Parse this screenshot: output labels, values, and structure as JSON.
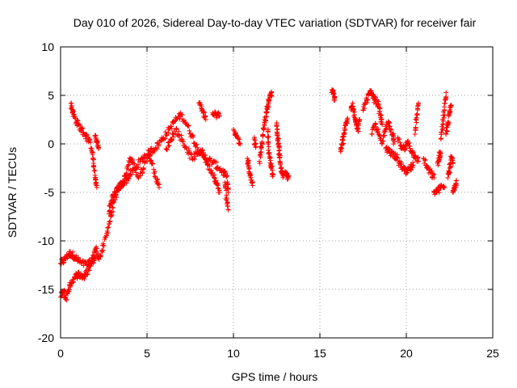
{
  "chart_data": {
    "type": "scatter",
    "title": "Day 010 of 2026, Sidereal Day-to-day VTEC variation (SDTVAR) for receiver fair",
    "xlabel": "GPS time / hours",
    "ylabel": "SDTVAR / TECUs",
    "xlim": [
      0,
      25
    ],
    "ylim": [
      -20,
      10
    ],
    "xticks": [
      "0",
      "5",
      "10",
      "15",
      "20",
      "25"
    ],
    "yticks": [
      "-20",
      "-15",
      "-10",
      "-5",
      "0",
      "5",
      "10"
    ],
    "grid": true,
    "marker": "+",
    "marker_color": "#ff0000",
    "series": [
      {
        "name": "SDTVAR",
        "segments": [
          [
            [
              0.0,
              -12.3
            ],
            [
              0.2,
              -12.0
            ],
            [
              0.4,
              -11.5
            ],
            [
              0.6,
              -11.3
            ],
            [
              0.8,
              -11.6
            ],
            [
              1.0,
              -12.0
            ],
            [
              1.2,
              -12.3
            ],
            [
              1.5,
              -12.4
            ],
            [
              1.8,
              -12.2
            ],
            [
              2.0,
              -11.8
            ],
            [
              2.3,
              -11.5
            ],
            [
              2.5,
              -10.5
            ],
            [
              2.7,
              -9.0
            ],
            [
              2.9,
              -7.5
            ],
            [
              3.1,
              -6.0
            ],
            [
              3.3,
              -4.8
            ],
            [
              3.5,
              -4.2
            ],
            [
              3.8,
              -3.8
            ],
            [
              4.0,
              -3.2
            ],
            [
              4.3,
              -2.6
            ],
            [
              4.6,
              -1.8
            ],
            [
              4.9,
              -1.2
            ],
            [
              5.2,
              -0.8
            ],
            [
              5.5,
              -0.4
            ],
            [
              5.8,
              0.3
            ],
            [
              6.1,
              1.0
            ],
            [
              6.4,
              1.8
            ],
            [
              6.7,
              2.6
            ],
            [
              7.0,
              3.0
            ],
            [
              7.3,
              2.0
            ],
            [
              7.6,
              0.8
            ],
            [
              7.9,
              -0.4
            ],
            [
              8.2,
              -1.2
            ],
            [
              8.5,
              -1.6
            ],
            [
              8.8,
              -1.9
            ],
            [
              9.1,
              -2.4
            ],
            [
              9.4,
              -2.9
            ],
            [
              9.6,
              -3.4
            ],
            [
              9.7,
              -5.0
            ]
          ],
          [
            [
              0.0,
              -15.8
            ],
            [
              0.15,
              -15.2
            ],
            [
              0.3,
              -16.0
            ],
            [
              0.45,
              -15.0
            ],
            [
              0.6,
              -14.3
            ],
            [
              0.8,
              -13.8
            ],
            [
              1.0,
              -13.4
            ],
            [
              1.2,
              -13.6
            ],
            [
              1.4,
              -13.7
            ],
            [
              1.6,
              -13.0
            ],
            [
              1.8,
              -12.0
            ],
            [
              1.95,
              -11.2
            ],
            [
              2.1,
              -10.8
            ]
          ],
          [
            [
              0.6,
              4.2
            ],
            [
              0.7,
              3.3
            ],
            [
              0.85,
              2.6
            ],
            [
              1.0,
              2.0
            ],
            [
              1.2,
              1.5
            ],
            [
              1.4,
              1.0
            ],
            [
              1.6,
              0.5
            ],
            [
              1.8,
              -0.5
            ],
            [
              1.9,
              -2.0
            ],
            [
              2.0,
              -3.5
            ],
            [
              2.1,
              -4.5
            ]
          ],
          [
            [
              2.0,
              0.8
            ],
            [
              2.1,
              0.2
            ],
            [
              2.2,
              -0.5
            ]
          ],
          [
            [
              2.8,
              -7.0
            ],
            [
              2.9,
              -6.2
            ],
            [
              3.0,
              -5.5
            ],
            [
              3.2,
              -5.0
            ],
            [
              3.4,
              -4.4
            ],
            [
              3.6,
              -4.0
            ],
            [
              3.8,
              -3.0
            ],
            [
              4.0,
              -1.5
            ],
            [
              4.2,
              -2.0
            ],
            [
              4.5,
              -3.5
            ],
            [
              4.8,
              -2.5
            ],
            [
              5.1,
              -1.0
            ],
            [
              5.3,
              -2.0
            ],
            [
              5.5,
              -3.5
            ],
            [
              5.7,
              -4.5
            ]
          ],
          [
            [
              6.1,
              -0.5
            ],
            [
              6.4,
              0.5
            ],
            [
              6.7,
              1.5
            ],
            [
              7.0,
              0.5
            ],
            [
              7.3,
              -0.5
            ],
            [
              7.6,
              -1.5
            ],
            [
              7.9,
              -1.0
            ],
            [
              8.2,
              -0.6
            ],
            [
              8.5,
              -2.2
            ],
            [
              8.8,
              -3.0
            ],
            [
              9.0,
              -4.0
            ],
            [
              9.2,
              -5.0
            ]
          ],
          [
            [
              8.0,
              4.2
            ],
            [
              8.2,
              3.5
            ],
            [
              8.4,
              2.5
            ]
          ],
          [
            [
              8.8,
              3.2
            ],
            [
              9.0,
              3.0
            ],
            [
              9.2,
              2.9
            ]
          ],
          [
            [
              9.5,
              -4.0
            ],
            [
              9.6,
              -5.5
            ],
            [
              9.7,
              -6.8
            ]
          ],
          [
            [
              10.0,
              1.5
            ],
            [
              10.2,
              0.8
            ],
            [
              10.4,
              0.0
            ]
          ],
          [
            [
              10.8,
              -1.5
            ],
            [
              10.9,
              -2.5
            ],
            [
              11.0,
              -3.5
            ],
            [
              11.1,
              -4.0
            ]
          ],
          [
            [
              11.2,
              0.5
            ],
            [
              11.3,
              -0.3
            ]
          ],
          [
            [
              11.5,
              -1.8
            ],
            [
              11.6,
              -0.5
            ],
            [
              11.7,
              0.8
            ],
            [
              11.8,
              2.2
            ],
            [
              11.9,
              3.2
            ],
            [
              12.0,
              4.0
            ],
            [
              12.1,
              4.8
            ],
            [
              12.2,
              5.3
            ]
          ],
          [
            [
              12.0,
              1.5
            ],
            [
              12.0,
              0.0
            ],
            [
              12.1,
              -1.5
            ],
            [
              12.2,
              -2.5
            ],
            [
              12.3,
              -3.2
            ]
          ],
          [
            [
              12.5,
              2.0
            ],
            [
              12.55,
              1.0
            ],
            [
              12.6,
              0.0
            ],
            [
              12.65,
              -1.0
            ],
            [
              12.7,
              -2.0
            ],
            [
              12.8,
              -3.0
            ],
            [
              12.9,
              -3.3
            ]
          ],
          [
            [
              13.0,
              -3.1
            ],
            [
              13.1,
              -3.3
            ],
            [
              13.2,
              -3.3
            ]
          ],
          [
            [
              15.7,
              5.6
            ],
            [
              15.8,
              5.2
            ],
            [
              15.85,
              4.5
            ]
          ],
          [
            [
              16.2,
              -0.8
            ],
            [
              16.3,
              0.0
            ],
            [
              16.4,
              1.0
            ],
            [
              16.5,
              2.0
            ],
            [
              16.6,
              2.5
            ]
          ],
          [
            [
              16.8,
              3.5
            ],
            [
              16.9,
              4.2
            ],
            [
              17.0,
              3.0
            ],
            [
              17.1,
              2.0
            ],
            [
              17.2,
              1.5
            ],
            [
              17.3,
              2.5
            ]
          ],
          [
            [
              17.5,
              3.5
            ],
            [
              17.7,
              4.5
            ],
            [
              17.9,
              5.3
            ],
            [
              18.0,
              5.0
            ],
            [
              18.2,
              4.5
            ],
            [
              18.4,
              4.0
            ],
            [
              18.5,
              3.0
            ],
            [
              18.6,
              2.0
            ]
          ],
          [
            [
              18.0,
              1.0
            ],
            [
              18.2,
              2.0
            ],
            [
              18.4,
              1.0
            ],
            [
              18.6,
              0.0
            ],
            [
              18.8,
              1.8
            ],
            [
              19.0,
              2.2
            ],
            [
              19.2,
              1.0
            ],
            [
              19.3,
              0.2
            ]
          ],
          [
            [
              18.8,
              -0.5
            ],
            [
              19.0,
              -0.8
            ],
            [
              19.2,
              -1.0
            ],
            [
              19.4,
              -1.3
            ],
            [
              19.6,
              -2.0
            ],
            [
              19.8,
              -2.5
            ],
            [
              20.0,
              -3.0
            ],
            [
              20.2,
              -2.6
            ],
            [
              20.4,
              -2.2
            ]
          ],
          [
            [
              19.5,
              0.5
            ],
            [
              19.7,
              -0.2
            ],
            [
              19.9,
              -0.6
            ],
            [
              20.1,
              0.3
            ],
            [
              20.3,
              -0.8
            ],
            [
              20.5,
              -1.2
            ],
            [
              20.7,
              -1.8
            ]
          ],
          [
            [
              20.5,
              1.0
            ],
            [
              20.6,
              3.0
            ],
            [
              20.7,
              4.2
            ]
          ],
          [
            [
              21.0,
              -1.5
            ],
            [
              21.2,
              -2.5
            ],
            [
              21.4,
              -3.0
            ],
            [
              21.6,
              -3.5
            ]
          ],
          [
            [
              21.6,
              -5.0
            ],
            [
              21.8,
              -4.8
            ],
            [
              22.0,
              -4.5
            ],
            [
              22.2,
              -4.5
            ]
          ],
          [
            [
              21.8,
              -2.0
            ],
            [
              21.9,
              -1.2
            ],
            [
              22.0,
              -1.0
            ]
          ],
          [
            [
              22.0,
              0.5
            ],
            [
              22.1,
              2.0
            ],
            [
              22.2,
              3.5
            ],
            [
              22.3,
              5.3
            ]
          ],
          [
            [
              22.4,
              -3.5
            ],
            [
              22.5,
              -2.5
            ],
            [
              22.6,
              -1.5
            ],
            [
              22.7,
              -2.0
            ]
          ],
          [
            [
              22.3,
              1.0
            ],
            [
              22.4,
              2.2
            ],
            [
              22.5,
              3.2
            ],
            [
              22.6,
              4.0
            ]
          ],
          [
            [
              22.7,
              -5.0
            ],
            [
              22.8,
              -4.3
            ],
            [
              22.9,
              -3.8
            ]
          ]
        ]
      }
    ]
  }
}
